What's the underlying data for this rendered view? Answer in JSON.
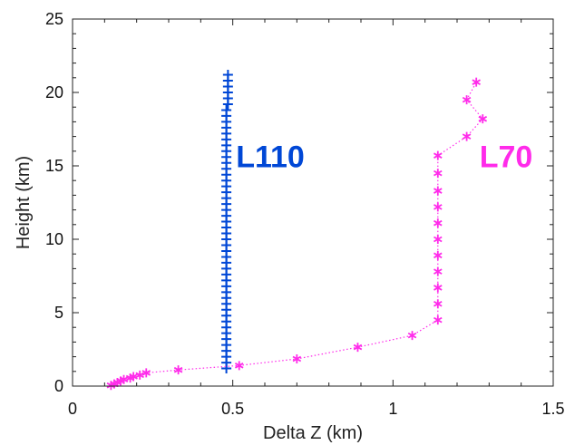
{
  "chart_data": {
    "type": "line",
    "xlabel": "Delta Z (km)",
    "ylabel": "Height (km)",
    "xlim": [
      0,
      1.5
    ],
    "ylim": [
      0,
      25
    ],
    "x_ticks": [
      0,
      0.5,
      1,
      1.5
    ],
    "x_tick_labels": [
      "0",
      "0.5",
      "1",
      "1.5"
    ],
    "y_ticks": [
      0,
      5,
      10,
      15,
      20,
      25
    ],
    "y_tick_labels": [
      "0",
      "5",
      "10",
      "15",
      "20",
      "25"
    ],
    "grid": false,
    "legend": "none",
    "series": [
      {
        "name": "L110",
        "color": "#0047d6",
        "marker": "plus",
        "line": "solid",
        "points": [
          [
            0.48,
            1.2
          ],
          [
            0.48,
            1.6
          ],
          [
            0.48,
            2.0
          ],
          [
            0.48,
            2.4
          ],
          [
            0.48,
            2.8
          ],
          [
            0.48,
            3.2
          ],
          [
            0.48,
            3.6
          ],
          [
            0.48,
            4.0
          ],
          [
            0.48,
            4.4
          ],
          [
            0.48,
            4.8
          ],
          [
            0.48,
            5.2
          ],
          [
            0.48,
            5.6
          ],
          [
            0.48,
            6.0
          ],
          [
            0.48,
            6.4
          ],
          [
            0.48,
            6.8
          ],
          [
            0.48,
            7.2
          ],
          [
            0.48,
            7.6
          ],
          [
            0.48,
            8.0
          ],
          [
            0.48,
            8.4
          ],
          [
            0.48,
            8.8
          ],
          [
            0.48,
            9.2
          ],
          [
            0.48,
            9.6
          ],
          [
            0.48,
            10.0
          ],
          [
            0.48,
            10.4
          ],
          [
            0.48,
            10.8
          ],
          [
            0.48,
            11.2
          ],
          [
            0.48,
            11.6
          ],
          [
            0.48,
            12.0
          ],
          [
            0.48,
            12.4
          ],
          [
            0.48,
            12.8
          ],
          [
            0.48,
            13.2
          ],
          [
            0.48,
            13.6
          ],
          [
            0.48,
            14.0
          ],
          [
            0.48,
            14.4
          ],
          [
            0.48,
            14.8
          ],
          [
            0.48,
            15.2
          ],
          [
            0.48,
            15.6
          ],
          [
            0.48,
            16.0
          ],
          [
            0.48,
            16.4
          ],
          [
            0.48,
            16.8
          ],
          [
            0.48,
            17.2
          ],
          [
            0.48,
            17.6
          ],
          [
            0.48,
            18.0
          ],
          [
            0.48,
            18.4
          ],
          [
            0.48,
            18.8
          ],
          [
            0.485,
            19.2
          ],
          [
            0.485,
            19.6
          ],
          [
            0.485,
            20.0
          ],
          [
            0.485,
            20.4
          ],
          [
            0.485,
            20.8
          ],
          [
            0.485,
            21.2
          ]
        ]
      },
      {
        "name": "L70",
        "color": "#ff2bea",
        "marker": "asterisk",
        "line": "dotted",
        "points": [
          [
            0.12,
            0.05
          ],
          [
            0.13,
            0.15
          ],
          [
            0.14,
            0.25
          ],
          [
            0.15,
            0.35
          ],
          [
            0.16,
            0.45
          ],
          [
            0.18,
            0.55
          ],
          [
            0.19,
            0.65
          ],
          [
            0.21,
            0.75
          ],
          [
            0.23,
            0.9
          ],
          [
            0.33,
            1.1
          ],
          [
            0.52,
            1.4
          ],
          [
            0.7,
            1.85
          ],
          [
            0.89,
            2.65
          ],
          [
            1.06,
            3.45
          ],
          [
            1.14,
            4.5
          ],
          [
            1.14,
            5.6
          ],
          [
            1.14,
            6.7
          ],
          [
            1.14,
            7.8
          ],
          [
            1.14,
            8.9
          ],
          [
            1.14,
            10.0
          ],
          [
            1.14,
            11.1
          ],
          [
            1.14,
            12.2
          ],
          [
            1.14,
            13.3
          ],
          [
            1.14,
            14.5
          ],
          [
            1.14,
            15.7
          ],
          [
            1.23,
            17.0
          ],
          [
            1.28,
            18.2
          ],
          [
            1.23,
            19.5
          ],
          [
            1.26,
            20.7
          ]
        ]
      }
    ],
    "annotations": [
      {
        "text": "L110",
        "x": 0.51,
        "y": 15.7,
        "color": "#0047d6"
      },
      {
        "text": "L70",
        "x": 1.27,
        "y": 15.7,
        "color": "#ff2bea"
      }
    ]
  }
}
